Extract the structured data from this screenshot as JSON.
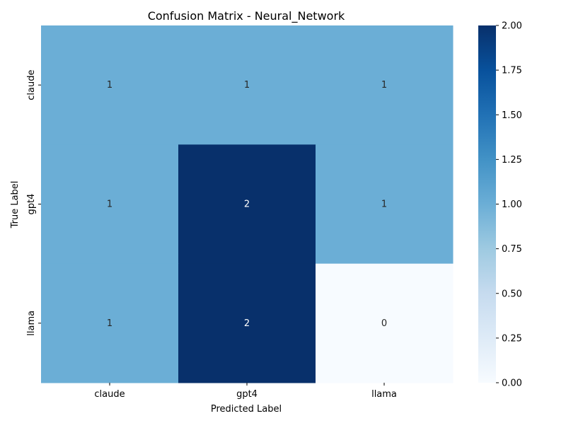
{
  "chart_data": {
    "type": "heatmap",
    "title": "Confusion Matrix - Neural_Network",
    "xlabel": "Predicted Label",
    "ylabel": "True Label",
    "x_categories": [
      "claude",
      "gpt4",
      "llama"
    ],
    "y_categories": [
      "claude",
      "gpt4",
      "llama"
    ],
    "values": [
      [
        1,
        1,
        1
      ],
      [
        1,
        2,
        1
      ],
      [
        1,
        2,
        0
      ]
    ],
    "colormap": "Blues",
    "colorbar": {
      "range": [
        0,
        2
      ],
      "ticks": [
        0.0,
        0.25,
        0.5,
        0.75,
        1.0,
        1.25,
        1.5,
        1.75,
        2.0
      ],
      "tick_labels": [
        "0.00",
        "0.25",
        "0.50",
        "0.75",
        "1.00",
        "1.25",
        "1.50",
        "1.75",
        "2.00"
      ]
    },
    "colors": {
      "value_0": "#f7fbff",
      "value_1": "#6baed6",
      "value_2": "#08306b",
      "annotation_text": "#ffffff",
      "annotation_text_light_cell": "#262626"
    }
  }
}
